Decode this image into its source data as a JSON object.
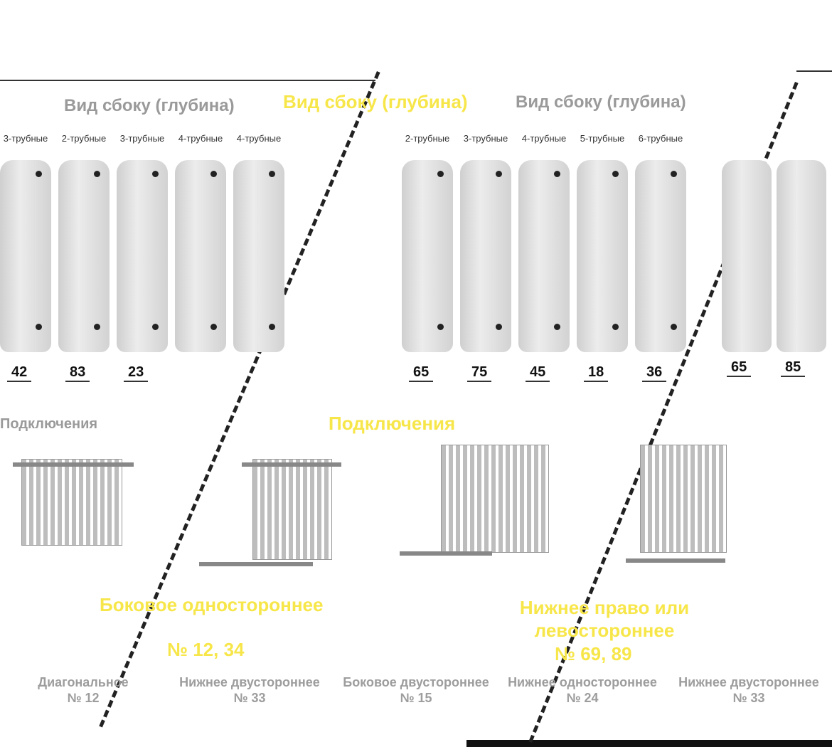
{
  "titles": {
    "side_view_left": "Вид сбоку (глубина)",
    "side_view": "Вид сбоку (глубина)",
    "side_view_right": "Вид сбоку (глубина)",
    "connections": "Подключения",
    "connections_shadow": "Подключения"
  },
  "column_labels_left": [
    "3-трубные",
    "2-трубные",
    "3-трубные",
    "4-трубные",
    "4-трубные"
  ],
  "column_labels_mid": [
    "2-трубные",
    "3-трубные",
    "4-трубные",
    "5-трубные",
    "6-трубные"
  ],
  "depths_left": [
    "42",
    "83",
    "23"
  ],
  "depths_mid": [
    "65",
    "75",
    "45",
    "18",
    "36"
  ],
  "depths_right": [
    "65",
    "85"
  ],
  "connections": [
    {
      "label": "Боковое одностороннее",
      "code": "№ 12, 34"
    },
    {
      "label": "Нижнее право или левостороннее",
      "code": "№ 69, 89"
    }
  ],
  "grey_labels": [
    {
      "label": "Диагональное",
      "code": "№ 12"
    },
    {
      "label": "Нижнее двустороннее",
      "code": "№ 33"
    },
    {
      "label": "Боковое двустороннее",
      "code": "№ 15"
    },
    {
      "label": "Нижнее одностороннее",
      "code": "№ 24"
    },
    {
      "label": "Нижнее двустороннее",
      "code": "№ 33"
    }
  ],
  "colors": {
    "accent": "#f7e64a",
    "radiator": "#d8d8d8",
    "pipe_red": "#e0303a"
  }
}
